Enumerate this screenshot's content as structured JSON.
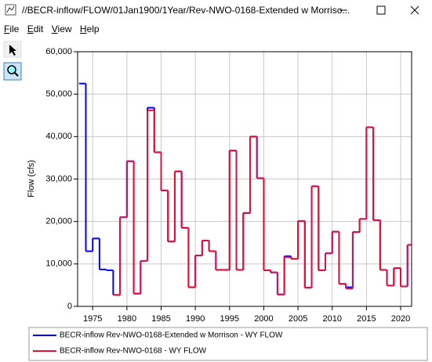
{
  "window": {
    "title": "//BECR-inflow/FLOW/01Jan1900/1Year/Rev-NWO-0168-Extended w Morriso...",
    "menu": [
      "File",
      "Edit",
      "View",
      "Help"
    ]
  },
  "chart_data": {
    "type": "step",
    "y_label": "Flow (cfs)",
    "x": [
      1973,
      1974,
      1975,
      1976,
      1977,
      1978,
      1979,
      1980,
      1981,
      1982,
      1983,
      1984,
      1985,
      1986,
      1987,
      1988,
      1989,
      1990,
      1991,
      1992,
      1993,
      1994,
      1995,
      1996,
      1997,
      1998,
      1999,
      2000,
      2001,
      2002,
      2003,
      2004,
      2005,
      2006,
      2007,
      2008,
      2009,
      2010,
      2011,
      2012,
      2013,
      2014,
      2015,
      2016,
      2017,
      2018,
      2019,
      2020,
      2021
    ],
    "series": [
      {
        "name": "BECR-inflow Rev-NWO-0168-Extended w Morrison - WY FLOW",
        "color": "#0000ff",
        "values": [
          52500,
          13000,
          16000,
          8700,
          8500,
          2700,
          21000,
          34200,
          3000,
          10700,
          46800,
          36300,
          27300,
          15300,
          31800,
          18500,
          4500,
          12000,
          15500,
          13000,
          8600,
          8600,
          36700,
          8600,
          22000,
          40000,
          30200,
          8500,
          8000,
          2800,
          11800,
          11200,
          20100,
          4400,
          28300,
          8500,
          12500,
          17600,
          5300,
          4500,
          17500,
          20600,
          42200,
          20300,
          8600,
          4900,
          9000,
          4700,
          14500
        ]
      },
      {
        "name": "BECR-inflow Rev-NWO-0168 - WY FLOW",
        "color": "#e0103a",
        "values": [
          null,
          null,
          null,
          null,
          null,
          2700,
          21000,
          34200,
          3000,
          10700,
          46200,
          36300,
          27300,
          15300,
          31800,
          18500,
          4500,
          12000,
          15500,
          13000,
          8600,
          8600,
          36700,
          8600,
          22000,
          40000,
          30200,
          8500,
          8000,
          2800,
          11600,
          11200,
          20100,
          4400,
          28300,
          8500,
          12500,
          17600,
          5300,
          4200,
          17500,
          20600,
          42200,
          20300,
          8600,
          4900,
          9000,
          4700,
          14500
        ]
      }
    ],
    "xlim": [
      1972.8,
      2021.6
    ],
    "xticks": [
      1975,
      1980,
      1985,
      1990,
      1995,
      2000,
      2005,
      2010,
      2015,
      2020
    ],
    "ylim": [
      0,
      60000
    ],
    "yticks": [
      0,
      {
        "value": 10000,
        "label": "10,000"
      },
      {
        "value": 20000,
        "label": "20,000"
      },
      {
        "value": 30000,
        "label": "30,000"
      },
      {
        "value": 40000,
        "label": "40,000"
      },
      {
        "value": 50000,
        "label": "50,000"
      },
      {
        "value": 60000,
        "label": "60,000"
      }
    ],
    "grid": true
  }
}
